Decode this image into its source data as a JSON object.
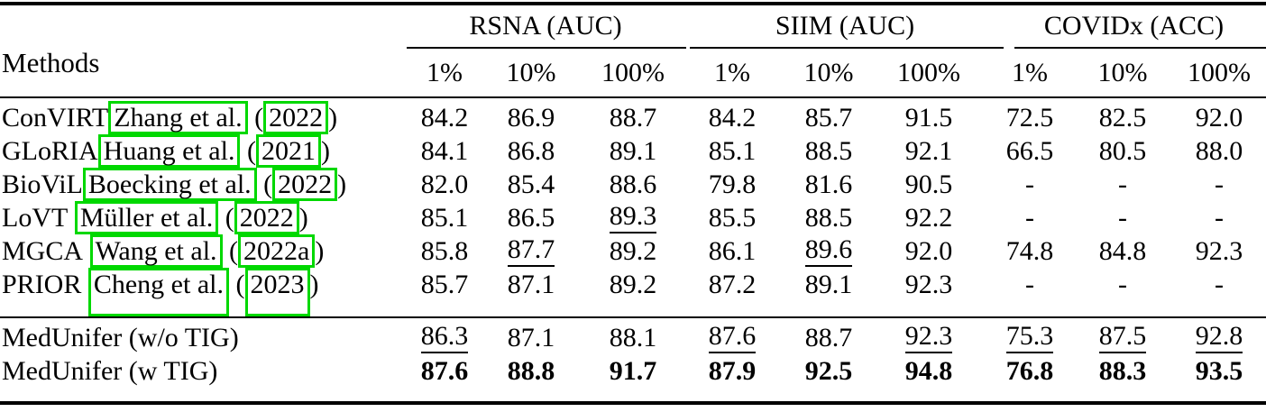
{
  "page": {
    "background": "#ffffff",
    "text_color": "#000000",
    "link_box_color": "#00d800"
  },
  "header": {
    "methods_label": "Methods",
    "groups": [
      {
        "label": "RSNA (AUC)",
        "cols": [
          "1%",
          "10%",
          "100%"
        ]
      },
      {
        "label": "SIIM (AUC)",
        "cols": [
          "1%",
          "10%",
          "100%"
        ]
      },
      {
        "label": "COVIDx (ACC)",
        "cols": [
          "1%",
          "10%",
          "100%"
        ]
      }
    ]
  },
  "rows": [
    {
      "name": "ConVIRT",
      "space": false,
      "cite_author": "Zhang et al.",
      "cite_year": "2022",
      "tall": false,
      "values": [
        "84.2",
        "86.9",
        "88.7",
        "84.2",
        "85.7",
        "91.5",
        "72.5",
        "82.5",
        "92.0"
      ],
      "underline": [],
      "bold": false
    },
    {
      "name": "GLoRIA",
      "space": false,
      "cite_author": "Huang et al.",
      "cite_year": "2021",
      "tall": false,
      "values": [
        "84.1",
        "86.8",
        "89.1",
        "85.1",
        "88.5",
        "92.1",
        "66.5",
        "80.5",
        "88.0"
      ],
      "underline": [],
      "bold": false
    },
    {
      "name": "BioViL",
      "space": false,
      "cite_author": "Boecking et al.",
      "cite_year": "2022",
      "tall": false,
      "values": [
        "82.0",
        "85.4",
        "88.6",
        "79.8",
        "81.6",
        "90.5",
        "-",
        "-",
        "-"
      ],
      "underline": [],
      "bold": false
    },
    {
      "name": "LoVT",
      "space": true,
      "cite_author": "Müller et al.",
      "cite_year": "2022",
      "tall": false,
      "values": [
        "85.1",
        "86.5",
        "89.3",
        "85.5",
        "88.5",
        "92.2",
        "-",
        "-",
        "-"
      ],
      "underline": [
        2
      ],
      "bold": false
    },
    {
      "name": "MGCA",
      "space": true,
      "cite_author": "Wang et al.",
      "cite_year": "2022a",
      "tall": false,
      "values": [
        "85.8",
        "87.7",
        "89.2",
        "86.1",
        "89.6",
        "92.0",
        "74.8",
        "84.8",
        "92.3"
      ],
      "underline": [
        1,
        4
      ],
      "bold": false
    },
    {
      "name": "PRIOR",
      "space": true,
      "cite_author": "Cheng et al.",
      "cite_year": "2023",
      "tall": true,
      "values": [
        "85.7",
        "87.1",
        "89.2",
        "87.2",
        "89.1",
        "92.3",
        "-",
        "-",
        "-"
      ],
      "underline": [],
      "bold": false
    }
  ],
  "footer_rows": [
    {
      "name": "MedUnifer (w/o TIG)",
      "values": [
        "86.3",
        "87.1",
        "88.1",
        "87.6",
        "88.7",
        "92.3",
        "75.3",
        "87.5",
        "92.8"
      ],
      "underline": [
        0,
        3,
        5,
        6,
        7,
        8
      ],
      "bold": false
    },
    {
      "name": "MedUnifer (w TIG)",
      "values": [
        "87.6",
        "88.8",
        "91.7",
        "87.9",
        "92.5",
        "94.8",
        "76.8",
        "88.3",
        "93.5"
      ],
      "underline": [],
      "bold": true
    }
  ]
}
